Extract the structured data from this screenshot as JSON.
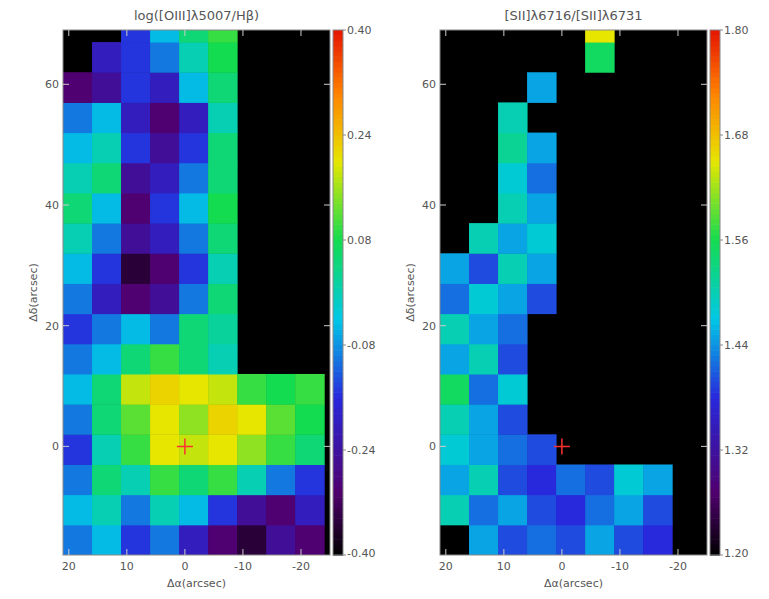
{
  "chart_data": [
    {
      "type": "heatmap",
      "title": "log([OIII]λ5007/Hβ)",
      "xlabel": "Δα(arcsec)",
      "ylabel": "Δδ(arcsec)",
      "xlim": [
        21,
        -25
      ],
      "ylim": [
        -18,
        69
      ],
      "xticks": [
        20,
        10,
        0,
        -10,
        -20
      ],
      "yticks": [
        0,
        20,
        40,
        60
      ],
      "x": [
        18.5,
        13.5,
        8.5,
        3.5,
        -1.5,
        -6.5,
        -11.5,
        -16.5,
        -21.5
      ],
      "y": [
        -15.5,
        -10.5,
        -5.5,
        -0.5,
        4.5,
        9.5,
        14.5,
        19.5,
        24.5,
        29.5,
        34.5,
        39.5,
        44.5,
        49.5,
        54.5,
        59.5,
        64.5,
        69.5
      ],
      "cells": [
        [
          -0.1,
          -0.05,
          -0.15,
          -0.1,
          -0.2,
          -0.3,
          -0.35,
          -0.25,
          -0.3
        ],
        [
          -0.05,
          0.0,
          -0.1,
          0.0,
          -0.05,
          -0.15,
          -0.25,
          -0.3,
          -0.2
        ],
        [
          -0.1,
          0.05,
          0.0,
          0.1,
          0.05,
          0.1,
          0.0,
          -0.1,
          -0.15
        ],
        [
          -0.15,
          0.0,
          0.1,
          0.2,
          0.18,
          0.2,
          0.15,
          0.1,
          0.05
        ],
        [
          -0.1,
          0.05,
          0.12,
          0.2,
          0.15,
          0.22,
          0.2,
          0.12,
          0.08
        ],
        [
          -0.05,
          0.05,
          0.18,
          0.22,
          0.2,
          0.18,
          0.1,
          0.08,
          0.1
        ],
        [
          -0.1,
          -0.05,
          0.05,
          0.1,
          0.05,
          0.0,
          null,
          null,
          null
        ],
        [
          -0.15,
          -0.1,
          -0.05,
          -0.1,
          0.05,
          0.02,
          null,
          null,
          null
        ],
        [
          -0.1,
          -0.2,
          -0.3,
          -0.25,
          -0.1,
          0.05,
          null,
          null,
          null
        ],
        [
          -0.05,
          -0.15,
          -0.35,
          -0.3,
          -0.15,
          0.0,
          null,
          null,
          null
        ],
        [
          0.0,
          -0.1,
          -0.25,
          -0.2,
          -0.1,
          0.05,
          null,
          null,
          null
        ],
        [
          0.05,
          -0.05,
          -0.3,
          -0.15,
          -0.05,
          0.08,
          null,
          null,
          null
        ],
        [
          0.0,
          0.05,
          -0.25,
          -0.2,
          -0.1,
          0.05,
          null,
          null,
          null
        ],
        [
          -0.05,
          0.0,
          -0.15,
          -0.25,
          -0.15,
          0.05,
          null,
          null,
          null
        ],
        [
          -0.1,
          -0.05,
          -0.2,
          -0.3,
          -0.2,
          0.0,
          null,
          null,
          null
        ],
        [
          -0.3,
          -0.25,
          -0.15,
          -0.2,
          -0.05,
          0.05,
          null,
          null,
          null
        ],
        [
          null,
          -0.2,
          -0.15,
          -0.1,
          0.0,
          0.08,
          null,
          null,
          null
        ],
        [
          null,
          null,
          -0.15,
          -0.05,
          0.05,
          0.1,
          null,
          null,
          null
        ]
      ],
      "colorbar": {
        "range": [
          -0.4,
          0.4
        ],
        "ticks": [
          {
            "value": 0.4,
            "label": "0.40"
          },
          {
            "value": 0.24,
            "label": "0.24"
          },
          {
            "value": 0.08,
            "label": "0.08"
          },
          {
            "value": -0.08,
            "label": "-0.08"
          },
          {
            "value": -0.24,
            "label": "-0.24"
          },
          {
            "value": -0.4,
            "label": "-0.40"
          }
        ]
      },
      "annotations": [
        {
          "x": 0,
          "y": 0,
          "marker": "cross",
          "color": "#ff3030"
        }
      ]
    },
    {
      "type": "heatmap",
      "title": "[SII]λ6716/[SII]λ6731",
      "xlabel": "Δα(arcsec)",
      "ylabel": "Δδ(arcsec)",
      "xlim": [
        21,
        -25
      ],
      "ylim": [
        -18,
        69
      ],
      "xticks": [
        20,
        10,
        0,
        -10,
        -20
      ],
      "yticks": [
        0,
        20,
        40,
        60
      ],
      "x": [
        18.5,
        13.5,
        8.5,
        3.5,
        -1.5,
        -6.5,
        -11.5,
        -16.5,
        -21.5
      ],
      "y": [
        -15.5,
        -10.5,
        -5.5,
        -0.5,
        4.5,
        9.5,
        14.5,
        19.5,
        24.5,
        29.5,
        34.5,
        39.5,
        44.5,
        49.5,
        54.5,
        59.5,
        64.5,
        69.5
      ],
      "cells": [
        [
          null,
          1.45,
          1.4,
          1.42,
          1.4,
          1.45,
          1.4,
          1.38,
          null
        ],
        [
          1.5,
          1.42,
          1.45,
          1.4,
          1.38,
          1.42,
          1.45,
          1.4,
          null
        ],
        [
          1.45,
          1.5,
          1.4,
          1.38,
          1.42,
          1.4,
          1.48,
          1.45,
          null
        ],
        [
          1.48,
          1.45,
          1.42,
          1.4,
          null,
          null,
          null,
          null,
          null
        ],
        [
          1.5,
          1.45,
          1.4,
          null,
          null,
          null,
          null,
          null,
          null
        ],
        [
          1.55,
          1.42,
          1.48,
          null,
          null,
          null,
          null,
          null,
          null
        ],
        [
          1.45,
          1.5,
          1.4,
          null,
          null,
          null,
          null,
          null,
          null
        ],
        [
          1.5,
          1.45,
          1.42,
          null,
          null,
          null,
          null,
          null,
          null
        ],
        [
          1.42,
          1.48,
          1.45,
          1.4,
          null,
          null,
          null,
          null,
          null
        ],
        [
          1.45,
          1.4,
          1.5,
          1.45,
          null,
          null,
          null,
          null,
          null
        ],
        [
          null,
          1.5,
          1.45,
          1.48,
          null,
          null,
          null,
          null,
          null
        ],
        [
          null,
          null,
          1.5,
          1.45,
          null,
          null,
          null,
          null,
          null
        ],
        [
          null,
          null,
          1.48,
          1.42,
          null,
          null,
          null,
          null,
          null
        ],
        [
          null,
          null,
          1.52,
          1.45,
          null,
          null,
          null,
          null,
          null
        ],
        [
          null,
          null,
          1.5,
          null,
          null,
          null,
          null,
          null,
          null
        ],
        [
          null,
          null,
          null,
          1.45,
          null,
          null,
          null,
          null,
          null
        ],
        [
          null,
          null,
          null,
          null,
          null,
          1.55,
          null,
          null,
          null
        ],
        [
          null,
          null,
          null,
          null,
          null,
          1.65,
          null,
          null,
          null
        ]
      ],
      "colorbar": {
        "range": [
          1.2,
          1.8
        ],
        "ticks": [
          {
            "value": 1.8,
            "label": "1.80"
          },
          {
            "value": 1.68,
            "label": "1.68"
          },
          {
            "value": 1.56,
            "label": "1.56"
          },
          {
            "value": 1.44,
            "label": "1.44"
          },
          {
            "value": 1.32,
            "label": "1.32"
          },
          {
            "value": 1.2,
            "label": "1.20"
          }
        ]
      },
      "annotations": [
        {
          "x": 0,
          "y": 0,
          "marker": "cross",
          "color": "#ff3030"
        }
      ]
    }
  ]
}
